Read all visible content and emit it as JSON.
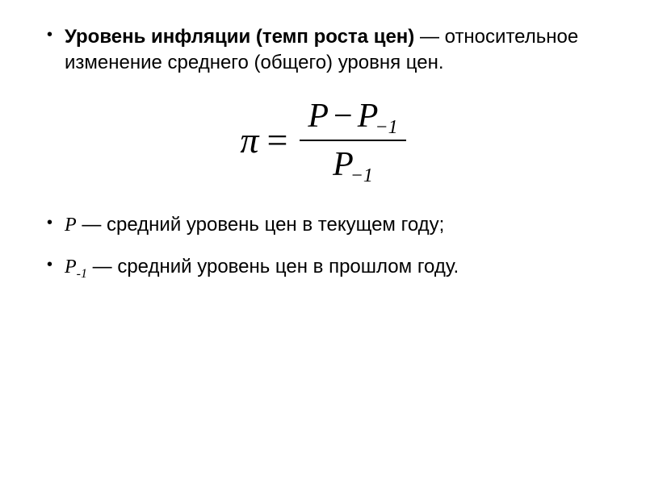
{
  "definition": {
    "term_bold": "Уровень инфляции (темп роста цен)",
    "term_rest": " — относительное изменение среднего (общего) уровня цен."
  },
  "formula": {
    "lhs": "π",
    "equals": "=",
    "num_p1": "P",
    "num_minus": "−",
    "num_p2": "P",
    "num_p2_sub": "−1",
    "den_p": "P",
    "den_p_sub": "−1"
  },
  "legend": {
    "p_current": {
      "var": "P",
      "text": " — средний уровень цен в текущем году;"
    },
    "p_prev": {
      "var": "P",
      "var_sub": "-1",
      "text": " — средний уровень цен в прошлом году."
    }
  },
  "style": {
    "text_color": "#000000",
    "background_color": "#ffffff",
    "body_fontsize": 24,
    "formula_fontsize": 46
  }
}
